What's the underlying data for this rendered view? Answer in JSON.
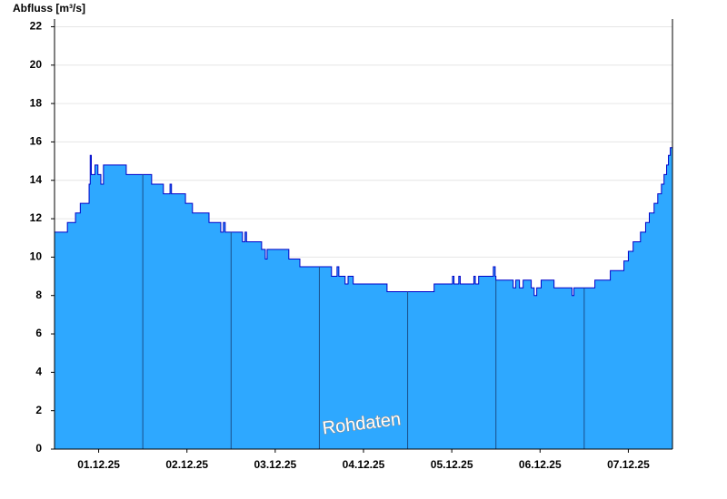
{
  "chart_data": {
    "type": "area",
    "title": "Abfluss [m³/s]",
    "annotation": "Rohdaten",
    "color": "#2ea8ff",
    "line_color": "#0000c8",
    "grid": true,
    "step": true,
    "x": [
      0,
      3.5,
      5.7,
      7.0,
      9.4,
      9.7,
      10.0,
      11.0,
      11.8,
      12.6,
      13.3,
      19.5,
      26.4,
      29.6,
      31.4,
      31.8,
      35.6,
      37.5,
      42.0,
      45.2,
      45.9,
      46.4,
      51.1,
      51.8,
      52.2,
      56.3,
      57.3,
      57.8,
      63.7,
      66.7,
      75.3,
      76.8,
      77.3,
      79.0,
      79.8,
      81.2,
      90.4,
      103.2,
      108.2,
      108.6,
      109.9,
      110.3,
      114.0,
      114.4,
      115.3,
      119.3,
      119.8,
      120.0,
      124.7,
      125.4,
      126.4,
      127.4,
      129.6,
      130.4,
      131.1,
      132.3,
      135.8,
      140.7,
      141.2,
      146.9,
      151.1,
      154.8,
      156.0,
      157.3,
      159.3,
      160.7,
      161.7,
      163.0,
      164.0,
      165.0,
      165.7,
      166.4,
      166.9,
      167.4
    ],
    "values": [
      11.3,
      11.8,
      12.3,
      12.8,
      13.8,
      15.3,
      14.3,
      14.8,
      14.3,
      13.8,
      14.8,
      14.3,
      13.8,
      13.3,
      13.8,
      13.3,
      12.8,
      12.3,
      11.8,
      11.3,
      11.8,
      11.3,
      10.8,
      11.3,
      10.8,
      10.4,
      9.9,
      10.4,
      9.9,
      9.5,
      9.0,
      9.5,
      9.0,
      8.6,
      9.0,
      8.6,
      8.2,
      8.6,
      9.0,
      8.6,
      9.0,
      8.6,
      9.0,
      8.6,
      9.0,
      9.5,
      9.0,
      8.8,
      8.4,
      8.8,
      8.4,
      8.8,
      8.4,
      8.0,
      8.4,
      8.8,
      8.4,
      8.0,
      8.4,
      8.8,
      9.3,
      9.8,
      10.3,
      10.8,
      11.3,
      11.8,
      12.3,
      12.8,
      13.3,
      13.8,
      14.3,
      14.8,
      15.3,
      15.7
    ],
    "xlim": [
      0,
      168
    ],
    "xticks": [
      {
        "value": 12,
        "label": "01.12.25"
      },
      {
        "value": 36,
        "label": "02.12.25"
      },
      {
        "value": 60,
        "label": "03.12.25"
      },
      {
        "value": 84,
        "label": "04.12.25"
      },
      {
        "value": 108,
        "label": "05.12.25"
      },
      {
        "value": 132,
        "label": "06.12.25"
      },
      {
        "value": 156,
        "label": "07.12.25"
      }
    ],
    "day_lines": [
      24,
      48,
      72,
      96,
      120,
      144
    ],
    "ylim": [
      0,
      22.4
    ],
    "yticks": [
      0,
      2,
      4,
      6,
      8,
      10,
      12,
      14,
      16,
      18,
      20,
      22
    ]
  }
}
